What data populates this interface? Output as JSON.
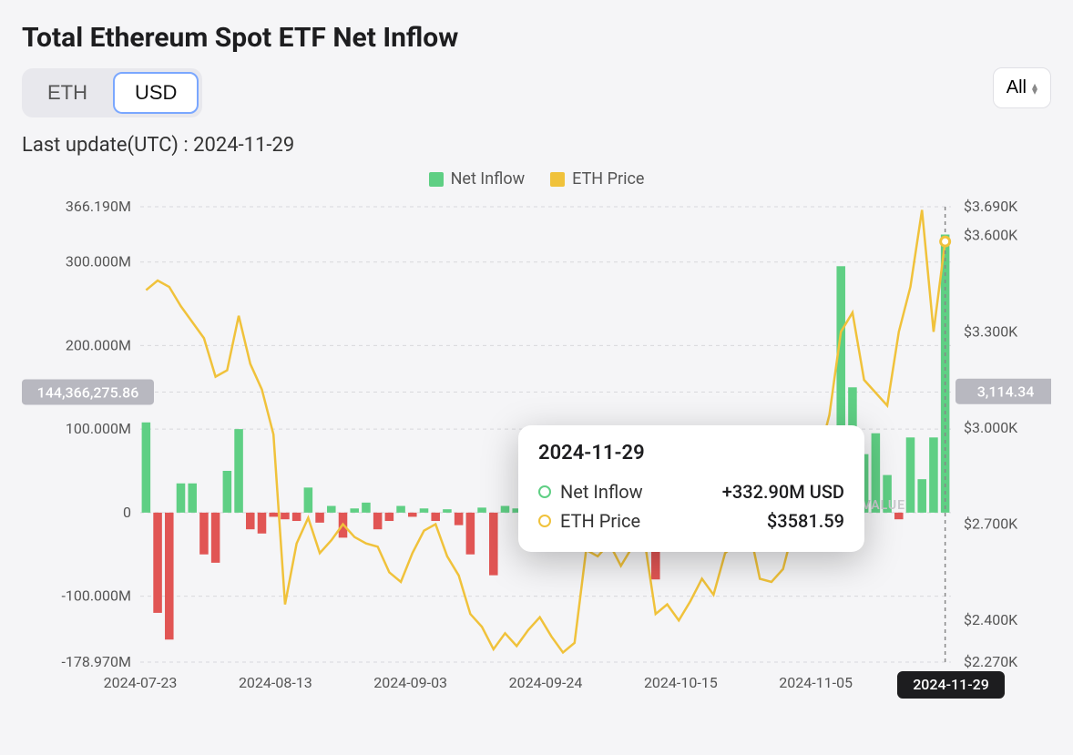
{
  "title": "Total Ethereum Spot ETF Net Inflow",
  "currency_toggle": {
    "options": [
      "ETH",
      "USD"
    ],
    "selected": "USD"
  },
  "range_selector": {
    "label": "All"
  },
  "last_update": {
    "prefix": "Last update(UTC) : ",
    "value": "2024-11-29"
  },
  "legend": {
    "net_inflow": "Net Inflow",
    "eth_price": "ETH Price"
  },
  "colors": {
    "bar_positive": "#5fcf84",
    "bar_negative": "#e15554",
    "price_line": "#f0c23b",
    "grid": "#d8d8dc",
    "background": "#f5f5f7",
    "avg_label_bg": "#b8b8c0",
    "highlight_box": "#1d1d1f"
  },
  "chart": {
    "type": "bar+line",
    "left_axis": {
      "label_avg": "144,366,275.86",
      "ticks": [
        -178.97,
        -100,
        0,
        100,
        200,
        300,
        366.19
      ],
      "tick_labels": [
        "-178.970M",
        "-100.000M",
        "0",
        "100.000M",
        "200.000M",
        "300.000M",
        "366.190M"
      ],
      "min": -178.97,
      "max": 366.19
    },
    "right_axis": {
      "label_avg": "3,114.34",
      "ticks": [
        2270,
        2400,
        2700,
        3000,
        3300,
        3600,
        3690
      ],
      "tick_labels": [
        "$2.270K",
        "$2.400K",
        "$2.700K",
        "$3.000K",
        "$3.300K",
        "$3.600K",
        "$3.690K"
      ],
      "min": 2270,
      "max": 3690
    },
    "x_ticks": [
      "2024-07-23",
      "2024-08-13",
      "2024-09-03",
      "2024-09-24",
      "2024-10-15",
      "2024-11-05",
      "2024-11-29"
    ],
    "x_highlight": "2024-11-29",
    "watermark": "SOSOVALUE",
    "avg_inflow": 144.366,
    "avg_price": 3114.34,
    "bars": [
      108,
      -120,
      -152,
      35,
      35,
      -50,
      -60,
      50,
      100,
      -20,
      -25,
      -5,
      -8,
      -10,
      30,
      -12,
      8,
      -30,
      5,
      12,
      -20,
      -10,
      8,
      -5,
      5,
      -10,
      4,
      -15,
      -50,
      6,
      -75,
      8,
      5,
      -12,
      10,
      -8,
      5,
      8,
      -25,
      -10,
      -6,
      12,
      60,
      85,
      -80,
      10,
      -8,
      -10,
      15,
      5,
      20,
      12,
      8,
      -15,
      -5,
      48,
      6,
      -10,
      15,
      25,
      295,
      150,
      70,
      95,
      45,
      -8,
      90,
      40,
      90,
      332.9
    ],
    "price": [
      3430,
      3460,
      3440,
      3380,
      3330,
      3280,
      3160,
      3180,
      3350,
      3200,
      3120,
      2980,
      2450,
      2640,
      2720,
      2610,
      2650,
      2700,
      2660,
      2640,
      2630,
      2550,
      2520,
      2610,
      2680,
      2700,
      2600,
      2540,
      2420,
      2380,
      2310,
      2360,
      2320,
      2370,
      2410,
      2350,
      2300,
      2330,
      2620,
      2600,
      2640,
      2570,
      2630,
      2660,
      2420,
      2450,
      2400,
      2460,
      2530,
      2480,
      2610,
      2640,
      2700,
      2530,
      2520,
      2560,
      2700,
      2880,
      2900,
      3040,
      3300,
      3360,
      3150,
      3110,
      3070,
      3300,
      3440,
      3680,
      3300,
      3581.59
    ]
  },
  "tooltip": {
    "date": "2024-11-29",
    "rows": [
      {
        "key": "net_inflow",
        "label": "Net Inflow",
        "value": "+332.90M USD",
        "color": "#5fcf84"
      },
      {
        "key": "eth_price",
        "label": "ETH Price",
        "value": "$3581.59",
        "color": "#f0c23b"
      }
    ]
  }
}
